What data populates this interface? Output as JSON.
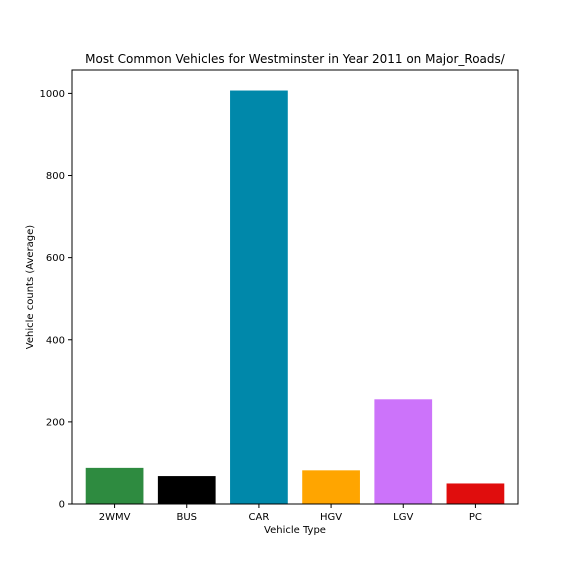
{
  "chart_data": {
    "type": "bar",
    "title": "Most Common Vehicles for Westminster in Year 2011 on Major_Roads/",
    "xlabel": "Vehicle Type",
    "ylabel": "Vehicle counts (Average)",
    "categories": [
      "2WMV",
      "BUS",
      "CAR",
      "HGV",
      "LGV",
      "PC"
    ],
    "values": [
      88,
      68,
      1007,
      82,
      255,
      50
    ],
    "colors": [
      "#2e8b40",
      "#000000",
      "#0088aa",
      "#ffa500",
      "#cc73fa",
      "#e00d0d"
    ],
    "ylim": [
      0,
      1057
    ],
    "yticks": [
      0,
      200,
      400,
      600,
      800,
      1000
    ],
    "grid": false,
    "legend": "none"
  }
}
